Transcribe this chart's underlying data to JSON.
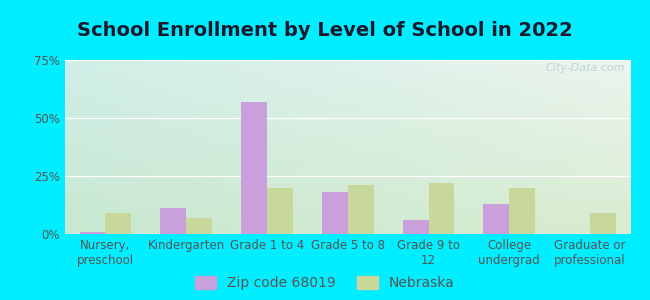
{
  "title": "School Enrollment by Level of School in 2022",
  "categories": [
    "Nursery,\npreschool",
    "Kindergarten",
    "Grade 1 to 4",
    "Grade 5 to 8",
    "Grade 9 to\n12",
    "College\nundergrad",
    "Graduate or\nprofessional"
  ],
  "zip_values": [
    1.0,
    11.0,
    57.0,
    18.0,
    6.0,
    13.0,
    0.0
  ],
  "nebraska_values": [
    9.0,
    7.0,
    20.0,
    21.0,
    22.0,
    20.0,
    9.0
  ],
  "zip_color": "#c9a0dc",
  "nebraska_color": "#c8d89a",
  "ylim": [
    0,
    75
  ],
  "yticks": [
    0,
    25,
    50,
    75
  ],
  "yticklabels": [
    "0%",
    "25%",
    "50%",
    "75%"
  ],
  "legend_zip_label": "Zip code 68019",
  "legend_nebraska_label": "Nebraska",
  "bg_outer": "#00eeff",
  "bg_plot_top_color": "#e8f5ee",
  "bg_plot_bottom_color": "#d8ecd0",
  "bg_plot_topleft_color": "#d0eee8",
  "watermark": "City-Data.com",
  "title_fontsize": 14,
  "tick_fontsize": 8.5,
  "legend_fontsize": 10,
  "bar_width": 0.32,
  "grid_color": "#ffffff",
  "tick_color": "#555555"
}
